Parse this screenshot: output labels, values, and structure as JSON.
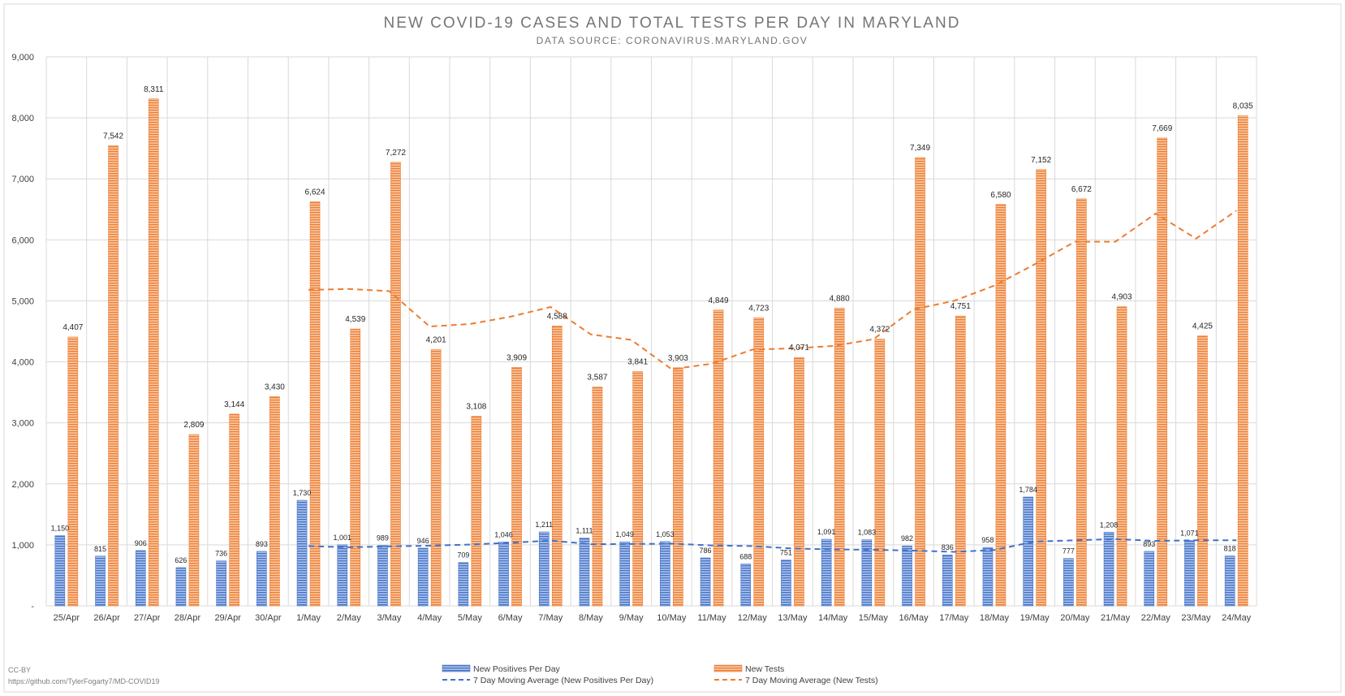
{
  "chart_data": {
    "type": "bar",
    "title": "NEW COVID-19 CASES AND TOTAL TESTS PER DAY IN MARYLAND",
    "subtitle": "DATA SOURCE: CORONAVIRUS.MARYLAND.GOV",
    "xlabel": "",
    "ylabel": "",
    "ylim": [
      0,
      9000
    ],
    "yticks": [
      0,
      1000,
      2000,
      3000,
      4000,
      5000,
      6000,
      7000,
      8000,
      9000
    ],
    "ytick_labels": [
      "-",
      "1,000",
      "2,000",
      "3,000",
      "4,000",
      "5,000",
      "6,000",
      "7,000",
      "8,000",
      "9,000"
    ],
    "grid": true,
    "legend_position": "bottom",
    "categories": [
      "25/Apr",
      "26/Apr",
      "27/Apr",
      "28/Apr",
      "29/Apr",
      "30/Apr",
      "1/May",
      "2/May",
      "3/May",
      "4/May",
      "5/May",
      "6/May",
      "7/May",
      "8/May",
      "9/May",
      "10/May",
      "11/May",
      "12/May",
      "13/May",
      "14/May",
      "15/May",
      "16/May",
      "17/May",
      "18/May",
      "19/May",
      "20/May",
      "21/May",
      "22/May",
      "23/May",
      "24/May"
    ],
    "series": [
      {
        "name": "New Positives Per Day",
        "kind": "bar",
        "color": "#4472c4",
        "values": [
          1150,
          815,
          906,
          626,
          736,
          893,
          1730,
          1001,
          989,
          946,
          709,
          1046,
          1211,
          1111,
          1049,
          1053,
          786,
          688,
          751,
          1091,
          1083,
          982,
          836,
          958,
          1784,
          777,
          1208,
          893,
          1071,
          818
        ],
        "labels": [
          "1,150",
          "815",
          "906",
          "626",
          "736",
          "893",
          "1,730",
          "1,001",
          "989",
          "946",
          "709",
          "1,046",
          "1,211",
          "1,111",
          "1,049",
          "1,053",
          "786",
          "688",
          "751",
          "1,091",
          "1,083",
          "982",
          "836",
          "958",
          "1,784",
          "777",
          "1,208",
          "893",
          "1,071",
          "818"
        ]
      },
      {
        "name": "New Tests",
        "kind": "bar",
        "color": "#ed7d31",
        "values": [
          4407,
          7542,
          8311,
          2809,
          3144,
          3430,
          6624,
          4539,
          7272,
          4201,
          3108,
          3909,
          4588,
          3587,
          3841,
          3903,
          4849,
          4723,
          4071,
          4880,
          4372,
          7349,
          4751,
          6580,
          7152,
          6672,
          4903,
          7669,
          4425,
          8035
        ],
        "labels": [
          "4,407",
          "7,542",
          "8,311",
          "2,809",
          "3,144",
          "3,430",
          "6,624",
          "4,539",
          "7,272",
          "4,201",
          "3,108",
          "3,909",
          "4,588",
          "3,587",
          "3,841",
          "3,903",
          "4,849",
          "4,723",
          "4,071",
          "4,880",
          "4,372",
          "7,349",
          "4,751",
          "6,580",
          "7,152",
          "6,672",
          "4,903",
          "7,669",
          "4,425",
          "8,035"
        ]
      },
      {
        "name": "7 Day Moving Average (New Positives Per Day)",
        "kind": "line",
        "color": "#4472c4",
        "values": [
          null,
          null,
          null,
          null,
          null,
          null,
          980,
          960,
          975,
          986,
          1005,
          1035,
          1070,
          1010,
          1015,
          1020,
          990,
          980,
          940,
          925,
          920,
          905,
          885,
          915,
          1055,
          1075,
          1095,
          1065,
          1075,
          1075
        ]
      },
      {
        "name": "7 Day Moving Average (New Tests)",
        "kind": "line",
        "color": "#ed7d31",
        "values": [
          null,
          null,
          null,
          null,
          null,
          null,
          5180,
          5195,
          5160,
          4580,
          4620,
          4740,
          4900,
          4450,
          4360,
          3880,
          3970,
          4200,
          4220,
          4260,
          4370,
          4860,
          5000,
          5250,
          5600,
          5970,
          5970,
          6430,
          6020,
          6480
        ]
      }
    ]
  },
  "footer": {
    "license": "CC-BY",
    "url": "https://github.com/TylerFogarty7/MD-COVID19"
  }
}
